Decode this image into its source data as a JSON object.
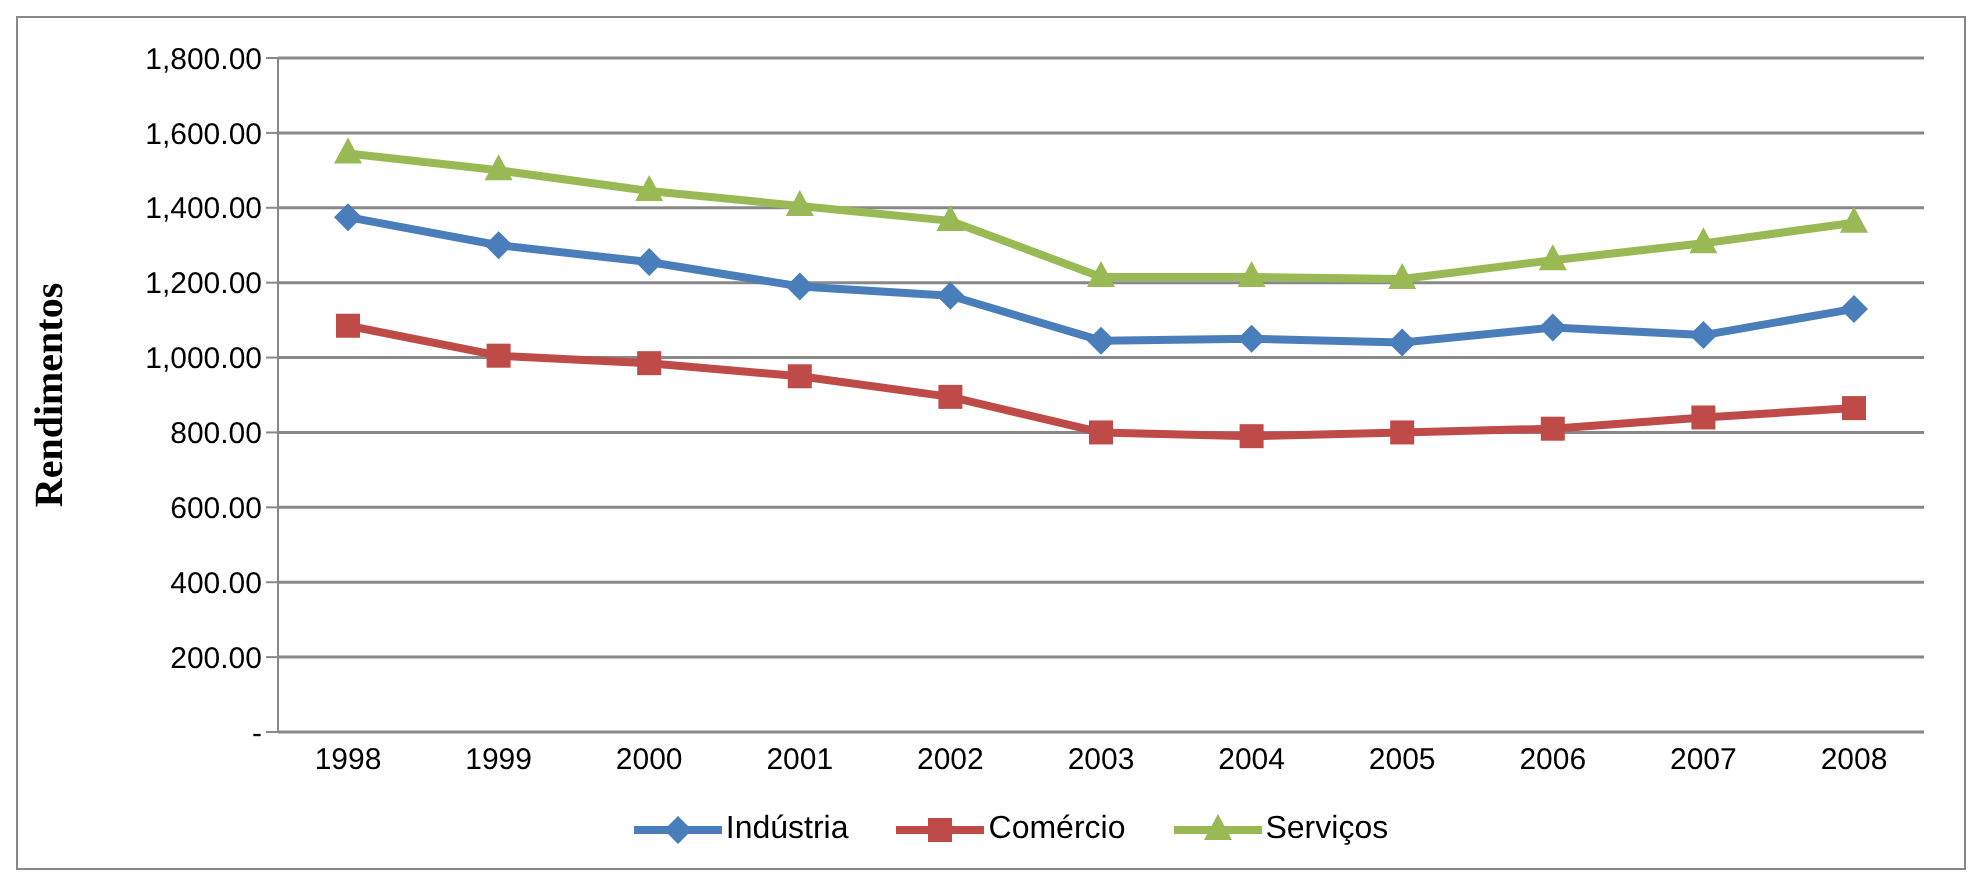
{
  "chart_data": {
    "type": "line",
    "ylabel": "Rendimentos",
    "categories": [
      "1998",
      "1999",
      "2000",
      "2001",
      "2002",
      "2003",
      "2004",
      "2005",
      "2006",
      "2007",
      "2008"
    ],
    "series": [
      {
        "name": "Indústria",
        "color": "#4a7ebb",
        "marker": "diamond",
        "values": [
          1375,
          1300,
          1255,
          1190,
          1165,
          1045,
          1050,
          1040,
          1080,
          1060,
          1130
        ]
      },
      {
        "name": "Comércio",
        "color": "#be4b48",
        "marker": "square",
        "values": [
          1085,
          1005,
          985,
          950,
          895,
          800,
          790,
          800,
          810,
          840,
          865
        ]
      },
      {
        "name": "Serviços",
        "color": "#98b954",
        "marker": "triangle",
        "values": [
          1545,
          1500,
          1445,
          1405,
          1365,
          1215,
          1215,
          1210,
          1260,
          1305,
          1360
        ]
      }
    ],
    "ylim": [
      0,
      1800
    ],
    "yticks": [
      {
        "value": 0,
        "label": "-"
      },
      {
        "value": 200,
        "label": "200.00"
      },
      {
        "value": 400,
        "label": "400.00"
      },
      {
        "value": 600,
        "label": "600.00"
      },
      {
        "value": 800,
        "label": "800.00"
      },
      {
        "value": 1000,
        "label": "1,000.00"
      },
      {
        "value": 1200,
        "label": "1,200.00"
      },
      {
        "value": 1400,
        "label": "1,400.00"
      },
      {
        "value": 1600,
        "label": "1,600.00"
      },
      {
        "value": 1800,
        "label": "1,800.00"
      }
    ],
    "grid": "y",
    "legend": "bottom",
    "line_style": "solid"
  }
}
